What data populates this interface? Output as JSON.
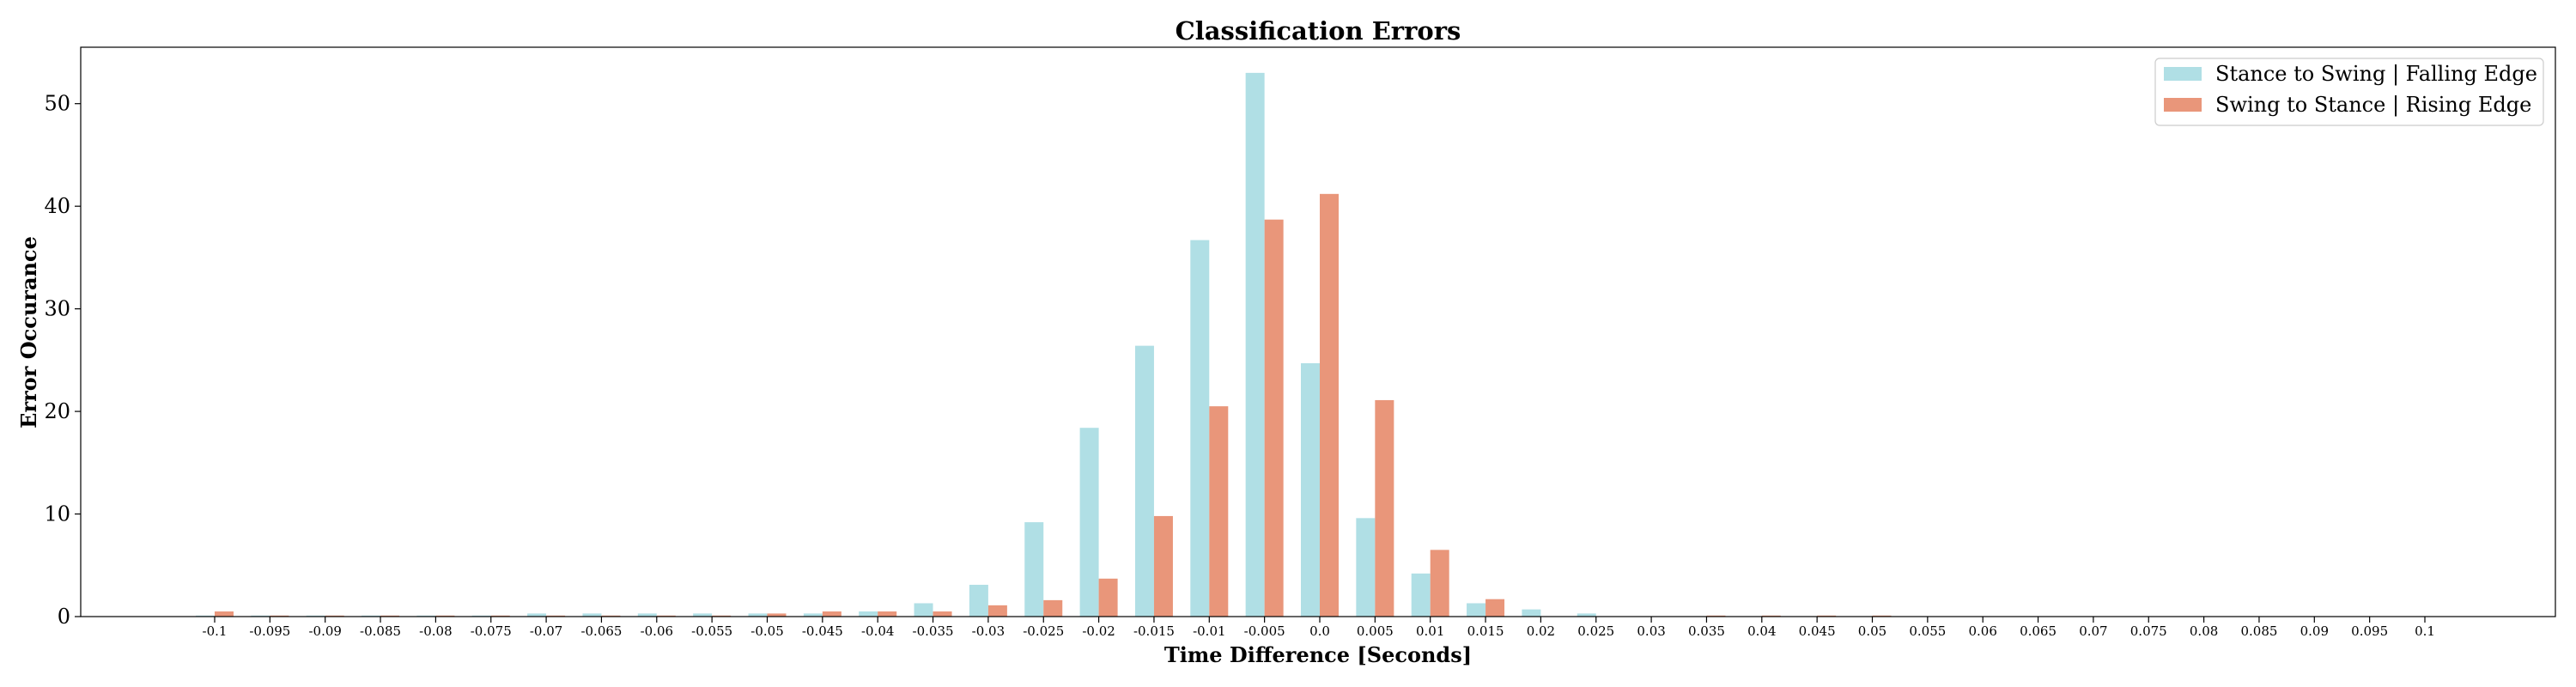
{
  "chart_data": {
    "type": "bar",
    "title": "Classification Errors",
    "xlabel": "Time Difference [Seconds]",
    "ylabel": "Error Occurance",
    "ylim": [
      0,
      55.5
    ],
    "yticks": [
      "0",
      "10",
      "20",
      "30",
      "40",
      "50"
    ],
    "legend_position": "top-right",
    "grid": false,
    "categories": [
      "-0.1",
      "-0.095",
      "-0.09",
      "-0.085",
      "-0.08",
      "-0.075",
      "-0.07",
      "-0.065",
      "-0.06",
      "-0.055",
      "-0.05",
      "-0.045",
      "-0.04",
      "-0.035",
      "-0.03",
      "-0.025",
      "-0.02",
      "-0.015",
      "-0.01",
      "-0.005",
      "0.0",
      "0.005",
      "0.01",
      "0.015",
      "0.02",
      "0.025",
      "0.03",
      "0.035",
      "0.04",
      "0.045",
      "0.05",
      "0.055",
      "0.06",
      "0.065",
      "0.07",
      "0.075",
      "0.08",
      "0.085",
      "0.09",
      "0.095",
      "0.1"
    ],
    "series": [
      {
        "name": "Stance to Swing | Falling Edge",
        "color": "#b0dfe5",
        "values": [
          0.1,
          0.1,
          0.1,
          0.1,
          0.1,
          0.1,
          0.3,
          0.3,
          0.3,
          0.3,
          0.3,
          0.3,
          0.5,
          1.3,
          3.1,
          9.2,
          18.4,
          26.4,
          36.7,
          53.0,
          24.7,
          9.6,
          4.2,
          1.3,
          0.7,
          0.3,
          0.0,
          0.0,
          0.0,
          0.0,
          0.0,
          0.0,
          0.0,
          0.0,
          0.0,
          0.0,
          0.0,
          0.0,
          0.0,
          0.0,
          0.0
        ]
      },
      {
        "name": "Swing to Stance | Rising Edge",
        "color": "#e9967a",
        "values": [
          0.5,
          0.1,
          0.1,
          0.1,
          0.1,
          0.1,
          0.1,
          0.1,
          0.1,
          0.1,
          0.3,
          0.5,
          0.5,
          0.5,
          1.1,
          1.6,
          3.7,
          9.8,
          20.5,
          38.7,
          41.2,
          21.1,
          6.5,
          1.7,
          0.0,
          0.0,
          0.0,
          0.1,
          0.1,
          0.1,
          0.1,
          0.0,
          0.0,
          0.0,
          0.0,
          0.0,
          0.0,
          0.0,
          0.0,
          0.0,
          0.0
        ]
      }
    ]
  }
}
